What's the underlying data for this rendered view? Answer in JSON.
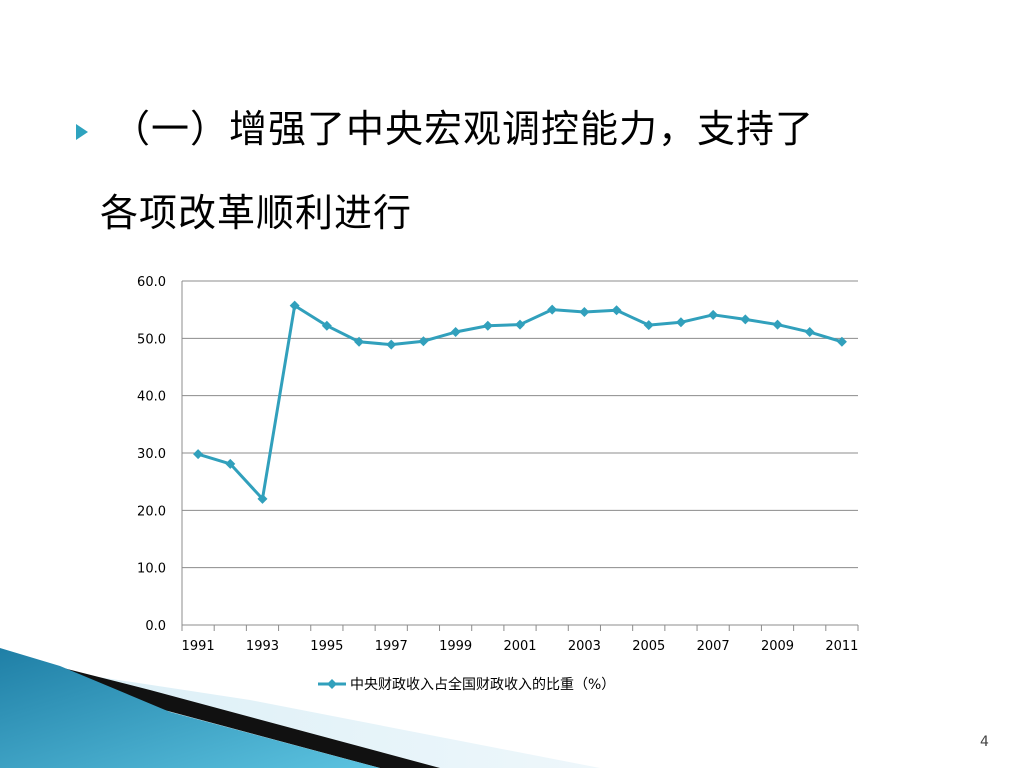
{
  "slide": {
    "title_line1": "（一）增强了中央宏观调控能力，支持了",
    "title_line2": "各项改革顺利进行",
    "page_number": "4",
    "accent_color": "#2EA3BF",
    "bullet_icon": "triangle-bullet-icon"
  },
  "chart_data": {
    "type": "line",
    "title": "",
    "xlabel": "",
    "ylabel": "",
    "ylim": [
      0,
      60
    ],
    "yticks": [
      "0.0",
      "10.0",
      "20.0",
      "30.0",
      "40.0",
      "50.0",
      "60.0"
    ],
    "x": [
      1991,
      1992,
      1993,
      1994,
      1995,
      1996,
      1997,
      1998,
      1999,
      2000,
      2001,
      2002,
      2003,
      2004,
      2005,
      2006,
      2007,
      2008,
      2009,
      2010,
      2011
    ],
    "x_tick_labels": [
      "1991",
      "1993",
      "1995",
      "1997",
      "1999",
      "2001",
      "2003",
      "2005",
      "2007",
      "2009",
      "2011"
    ],
    "grid": "horizontal",
    "legend_position": "bottom",
    "series": [
      {
        "name": "中央财政收入占全国财政收入的比重（%）",
        "color": "#31A0BC",
        "marker": "diamond",
        "values": [
          29.8,
          28.1,
          22.0,
          55.7,
          52.2,
          49.4,
          48.9,
          49.5,
          51.1,
          52.2,
          52.4,
          55.0,
          54.6,
          54.9,
          52.3,
          52.8,
          54.1,
          53.3,
          52.4,
          51.1,
          49.4
        ]
      }
    ]
  }
}
